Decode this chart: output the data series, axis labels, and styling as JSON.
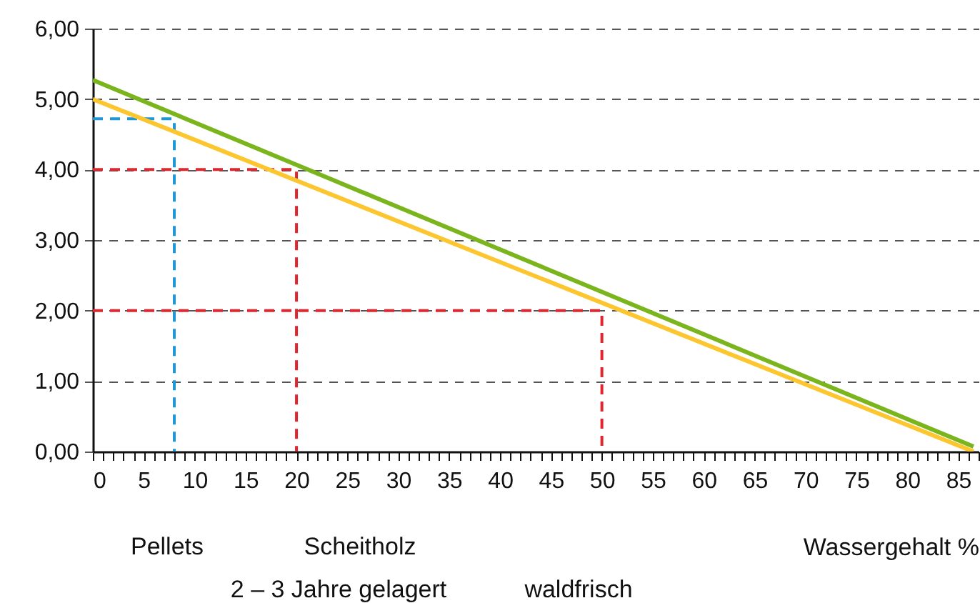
{
  "chart_data": {
    "type": "line",
    "xlabel": "Wassergehalt %",
    "xlim": [
      0,
      87
    ],
    "ylim": [
      0,
      6
    ],
    "xticks": [
      0,
      {
        "value": 1,
        "label": null
      },
      {
        "value": 2,
        "label": null
      },
      {
        "value": 3,
        "label": null
      },
      {
        "value": 4,
        "label": null
      },
      5,
      {
        "value": 6,
        "label": null
      },
      {
        "value": 7,
        "label": null
      },
      {
        "value": 8,
        "label": null
      },
      {
        "value": 9,
        "label": null
      },
      10,
      {
        "value": 11,
        "label": null
      },
      {
        "value": 12,
        "label": null
      },
      {
        "value": 13,
        "label": null
      },
      {
        "value": 14,
        "label": null
      },
      15,
      {
        "value": 16,
        "label": null
      },
      {
        "value": 17,
        "label": null
      },
      {
        "value": 18,
        "label": null
      },
      {
        "value": 19,
        "label": null
      },
      20,
      {
        "value": 21,
        "label": null
      },
      {
        "value": 22,
        "label": null
      },
      {
        "value": 23,
        "label": null
      },
      {
        "value": 24,
        "label": null
      },
      25,
      {
        "value": 26,
        "label": null
      },
      {
        "value": 27,
        "label": null
      },
      {
        "value": 28,
        "label": null
      },
      {
        "value": 29,
        "label": null
      },
      30,
      {
        "value": 31,
        "label": null
      },
      {
        "value": 32,
        "label": null
      },
      {
        "value": 33,
        "label": null
      },
      {
        "value": 34,
        "label": null
      },
      35,
      {
        "value": 36,
        "label": null
      },
      {
        "value": 37,
        "label": null
      },
      {
        "value": 38,
        "label": null
      },
      {
        "value": 39,
        "label": null
      },
      40,
      {
        "value": 41,
        "label": null
      },
      {
        "value": 42,
        "label": null
      },
      {
        "value": 43,
        "label": null
      },
      {
        "value": 44,
        "label": null
      },
      45,
      {
        "value": 46,
        "label": null
      },
      {
        "value": 47,
        "label": null
      },
      {
        "value": 48,
        "label": null
      },
      {
        "value": 49,
        "label": null
      },
      50,
      {
        "value": 51,
        "label": null
      },
      {
        "value": 52,
        "label": null
      },
      {
        "value": 53,
        "label": null
      },
      {
        "value": 54,
        "label": null
      },
      55,
      {
        "value": 56,
        "label": null
      },
      {
        "value": 57,
        "label": null
      },
      {
        "value": 58,
        "label": null
      },
      {
        "value": 59,
        "label": null
      },
      60,
      {
        "value": 61,
        "label": null
      },
      {
        "value": 62,
        "label": null
      },
      {
        "value": 63,
        "label": null
      },
      {
        "value": 64,
        "label": null
      },
      65,
      {
        "value": 66,
        "label": null
      },
      {
        "value": 67,
        "label": null
      },
      {
        "value": 68,
        "label": null
      },
      {
        "value": 69,
        "label": null
      },
      70,
      {
        "value": 71,
        "label": null
      },
      {
        "value": 72,
        "label": null
      },
      {
        "value": 73,
        "label": null
      },
      {
        "value": 74,
        "label": null
      },
      75,
      {
        "value": 76,
        "label": null
      },
      {
        "value": 77,
        "label": null
      },
      {
        "value": 78,
        "label": null
      },
      {
        "value": 79,
        "label": null
      },
      80,
      {
        "value": 81,
        "label": null
      },
      {
        "value": 82,
        "label": null
      },
      {
        "value": 83,
        "label": null
      },
      {
        "value": 84,
        "label": null
      },
      85,
      {
        "value": 86,
        "label": null
      },
      {
        "value": 87,
        "label": null
      }
    ],
    "yticks": [
      {
        "value": 0,
        "label": "0,00"
      },
      {
        "value": 1,
        "label": "1,00"
      },
      {
        "value": 2,
        "label": "2,00"
      },
      {
        "value": 3,
        "label": "3,00"
      },
      {
        "value": 4,
        "label": "4,00"
      },
      {
        "value": 5,
        "label": "5,00"
      },
      {
        "value": 6,
        "label": "6,00"
      }
    ],
    "grid": "y",
    "series": [
      {
        "color": "#e3262d",
        "line_style": "dashed",
        "x": [
          0,
          20,
          20
        ],
        "values": [
          4,
          4,
          0
        ]
      },
      {
        "color": "#e3262d",
        "line_style": "dashed",
        "x": [
          0,
          50,
          50
        ],
        "values": [
          2,
          2,
          0
        ]
      },
      {
        "color": "#1f97d4",
        "line_style": "dashed",
        "x": [
          0,
          8,
          8
        ],
        "values": [
          4.72,
          4.72,
          0
        ]
      },
      {
        "color": "#fcc630",
        "line_style": "solid",
        "x": [
          0,
          86.5
        ],
        "values": [
          5.0,
          0.0
        ]
      },
      {
        "color": "#7ab51d",
        "line_style": "solid",
        "x": [
          0,
          86.5
        ],
        "values": [
          5.27,
          0.07
        ]
      }
    ],
    "annotations": [
      "Pellets",
      "Scheitholz",
      "2 – 3 Jahre gelagert",
      "waldfrisch"
    ]
  }
}
